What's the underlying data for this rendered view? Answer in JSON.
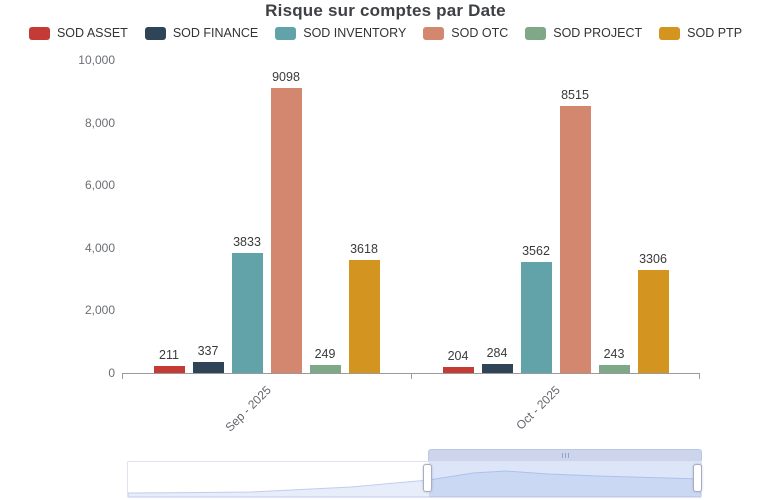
{
  "page": {
    "title": "Risque sur comptes par Date"
  },
  "chart_data": {
    "type": "bar",
    "title": "Risque sur comptes par Date",
    "categories": [
      "Sep - 2025",
      "Oct - 2025"
    ],
    "series": [
      {
        "name": "SOD ASSET",
        "color": "#c43a35",
        "values": [
          211,
          204
        ]
      },
      {
        "name": "SOD FINANCE",
        "color": "#2f4456",
        "values": [
          337,
          284
        ]
      },
      {
        "name": "SOD INVENTORY",
        "color": "#62a3aa",
        "values": [
          3833,
          3562
        ]
      },
      {
        "name": "SOD OTC",
        "color": "#d4876f",
        "values": [
          9098,
          8515
        ]
      },
      {
        "name": "SOD PROJECT",
        "color": "#7ea887",
        "values": [
          249,
          243
        ]
      },
      {
        "name": "SOD PTP",
        "color": "#d39420",
        "values": [
          3618,
          3306
        ]
      }
    ],
    "ylim": [
      0,
      10000
    ],
    "y_ticks": [
      "0",
      "2,000",
      "4,000",
      "6,000",
      "8,000",
      "10,000"
    ],
    "legend_position": "top",
    "grid": false,
    "data_labels": true
  },
  "navigator": {
    "grip_icon": "|||"
  }
}
